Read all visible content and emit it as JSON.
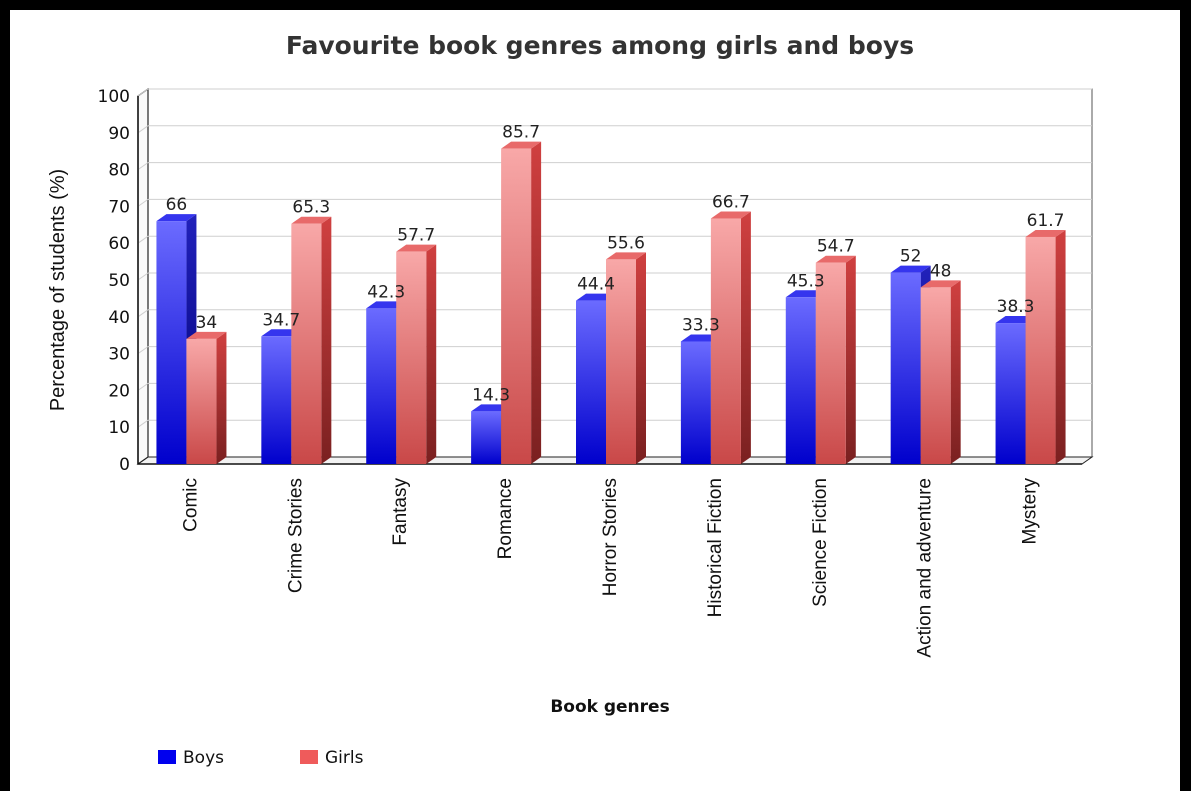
{
  "chart_data": {
    "type": "bar",
    "title": "Favourite book genres among girls and boys",
    "xlabel": "Book genres",
    "ylabel": "Percentage of students (%)",
    "ylim": [
      0,
      100
    ],
    "yticks": [
      0,
      10,
      20,
      30,
      40,
      50,
      60,
      70,
      80,
      90,
      100
    ],
    "grid": true,
    "legend_position": "bottom-left",
    "categories": [
      "Comic",
      "Crime Stories",
      "Fantasy",
      "Romance",
      "Horror Stories",
      "Historical Fiction",
      "Science Fiction",
      "Action and adventure",
      "Mystery"
    ],
    "series": [
      {
        "name": "Boys",
        "color": "#0000ee",
        "values": [
          66,
          34.7,
          42.3,
          14.3,
          44.4,
          33.3,
          45.3,
          52,
          38.3
        ]
      },
      {
        "name": "Girls",
        "color": "#ef5b5b",
        "values": [
          34,
          65.3,
          57.7,
          85.7,
          55.6,
          66.7,
          54.7,
          48,
          61.7
        ]
      }
    ]
  }
}
